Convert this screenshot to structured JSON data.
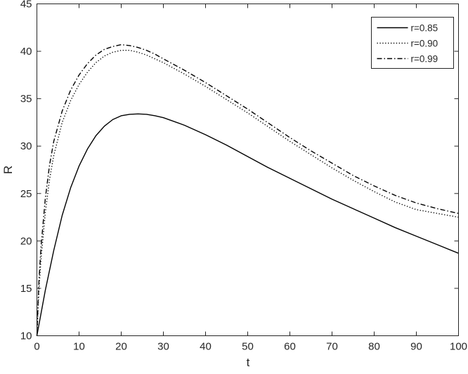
{
  "chart_data": {
    "type": "line",
    "title": "",
    "xlabel": "t",
    "ylabel": "R",
    "xlim": [
      0,
      100
    ],
    "ylim": [
      10,
      45
    ],
    "x_ticks": [
      0,
      10,
      20,
      30,
      40,
      50,
      60,
      70,
      80,
      90,
      100
    ],
    "y_ticks": [
      10,
      15,
      20,
      25,
      30,
      35,
      40,
      45
    ],
    "grid": false,
    "legend_position": "top-right",
    "series": [
      {
        "name": "r=0.85",
        "line_style": "solid",
        "color": "#000000",
        "x": [
          0,
          2,
          4,
          6,
          8,
          10,
          12,
          14,
          16,
          18,
          20,
          22,
          24,
          26,
          28,
          30,
          35,
          40,
          45,
          50,
          55,
          60,
          65,
          70,
          75,
          80,
          85,
          90,
          95,
          100
        ],
        "y": [
          10.0,
          14.8,
          19.0,
          22.7,
          25.6,
          27.9,
          29.7,
          31.1,
          32.1,
          32.8,
          33.2,
          33.35,
          33.4,
          33.35,
          33.2,
          33.0,
          32.2,
          31.2,
          30.1,
          28.9,
          27.7,
          26.6,
          25.5,
          24.4,
          23.4,
          22.4,
          21.4,
          20.5,
          19.6,
          18.7
        ]
      },
      {
        "name": "r=0.90",
        "line_style": "dotted",
        "color": "#000000",
        "x": [
          0,
          0.5,
          1,
          2,
          3,
          4,
          6,
          8,
          10,
          12,
          14,
          16,
          18,
          20,
          22,
          24,
          26,
          28,
          30,
          35,
          40,
          45,
          50,
          55,
          60,
          65,
          70,
          75,
          80,
          85,
          90,
          95,
          100
        ],
        "y": [
          10.0,
          15.0,
          18.2,
          23.0,
          26.5,
          29.0,
          32.5,
          34.8,
          36.5,
          37.8,
          38.8,
          39.5,
          39.9,
          40.1,
          40.1,
          39.9,
          39.6,
          39.2,
          38.8,
          37.6,
          36.3,
          34.9,
          33.5,
          32.0,
          30.5,
          29.1,
          27.7,
          26.4,
          25.2,
          24.1,
          23.3,
          22.9,
          22.5
        ]
      },
      {
        "name": "r=0.99",
        "line_style": "dash-dot",
        "color": "#000000",
        "x": [
          0,
          0.5,
          1,
          2,
          3,
          4,
          6,
          8,
          10,
          12,
          14,
          16,
          18,
          20,
          22,
          24,
          26,
          28,
          30,
          35,
          40,
          45,
          50,
          55,
          60,
          65,
          70,
          75,
          80,
          85,
          90,
          95,
          100
        ],
        "y": [
          10.0,
          16.0,
          19.5,
          24.5,
          28.0,
          30.5,
          33.7,
          35.9,
          37.5,
          38.7,
          39.6,
          40.2,
          40.5,
          40.7,
          40.6,
          40.4,
          40.1,
          39.7,
          39.2,
          38.0,
          36.7,
          35.3,
          33.9,
          32.4,
          30.9,
          29.5,
          28.2,
          26.9,
          25.8,
          24.8,
          24.0,
          23.4,
          22.9
        ]
      }
    ]
  }
}
